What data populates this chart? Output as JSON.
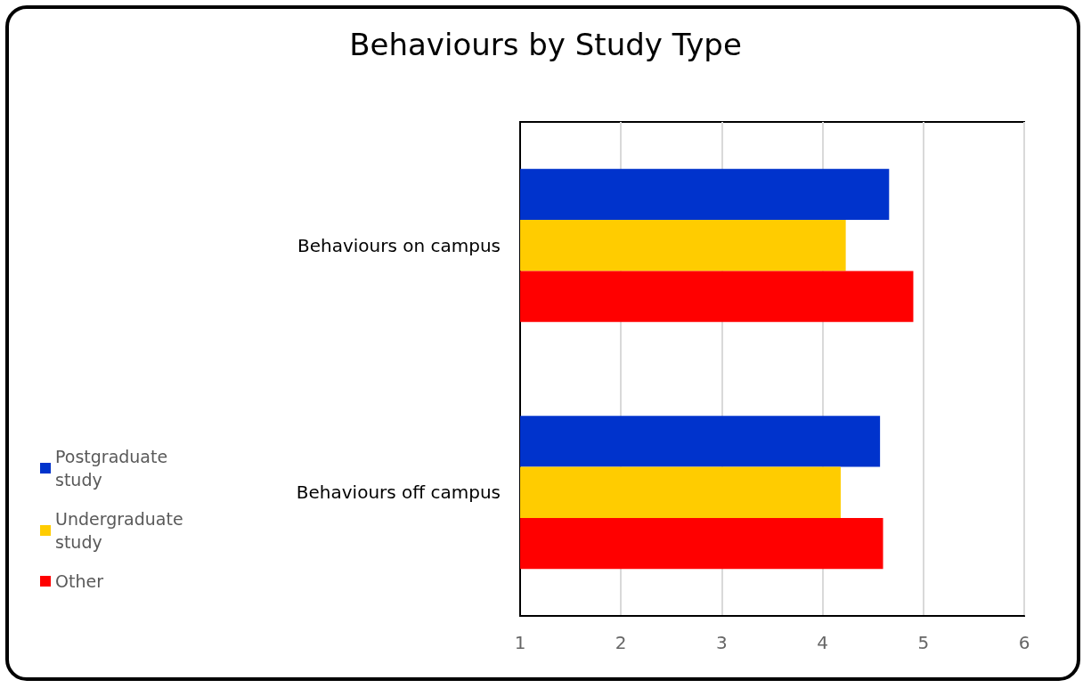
{
  "chart_data": {
    "type": "bar",
    "orientation": "horizontal",
    "title": "Behaviours by Study Type",
    "categories": [
      "Behaviours on campus",
      "Behaviours off campus"
    ],
    "series": [
      {
        "name": "Postgraduate study",
        "color": "#0033cc",
        "values": [
          4.66,
          4.57
        ]
      },
      {
        "name": "Undergraduate study",
        "color": "#ffcc00",
        "values": [
          4.23,
          4.18
        ]
      },
      {
        "name": "Other",
        "color": "#ff0000",
        "values": [
          4.9,
          4.6
        ]
      }
    ],
    "xlim": [
      1,
      6
    ],
    "xticks": [
      1,
      2,
      3,
      4,
      5,
      6
    ],
    "grid": "x",
    "legend": "left"
  }
}
